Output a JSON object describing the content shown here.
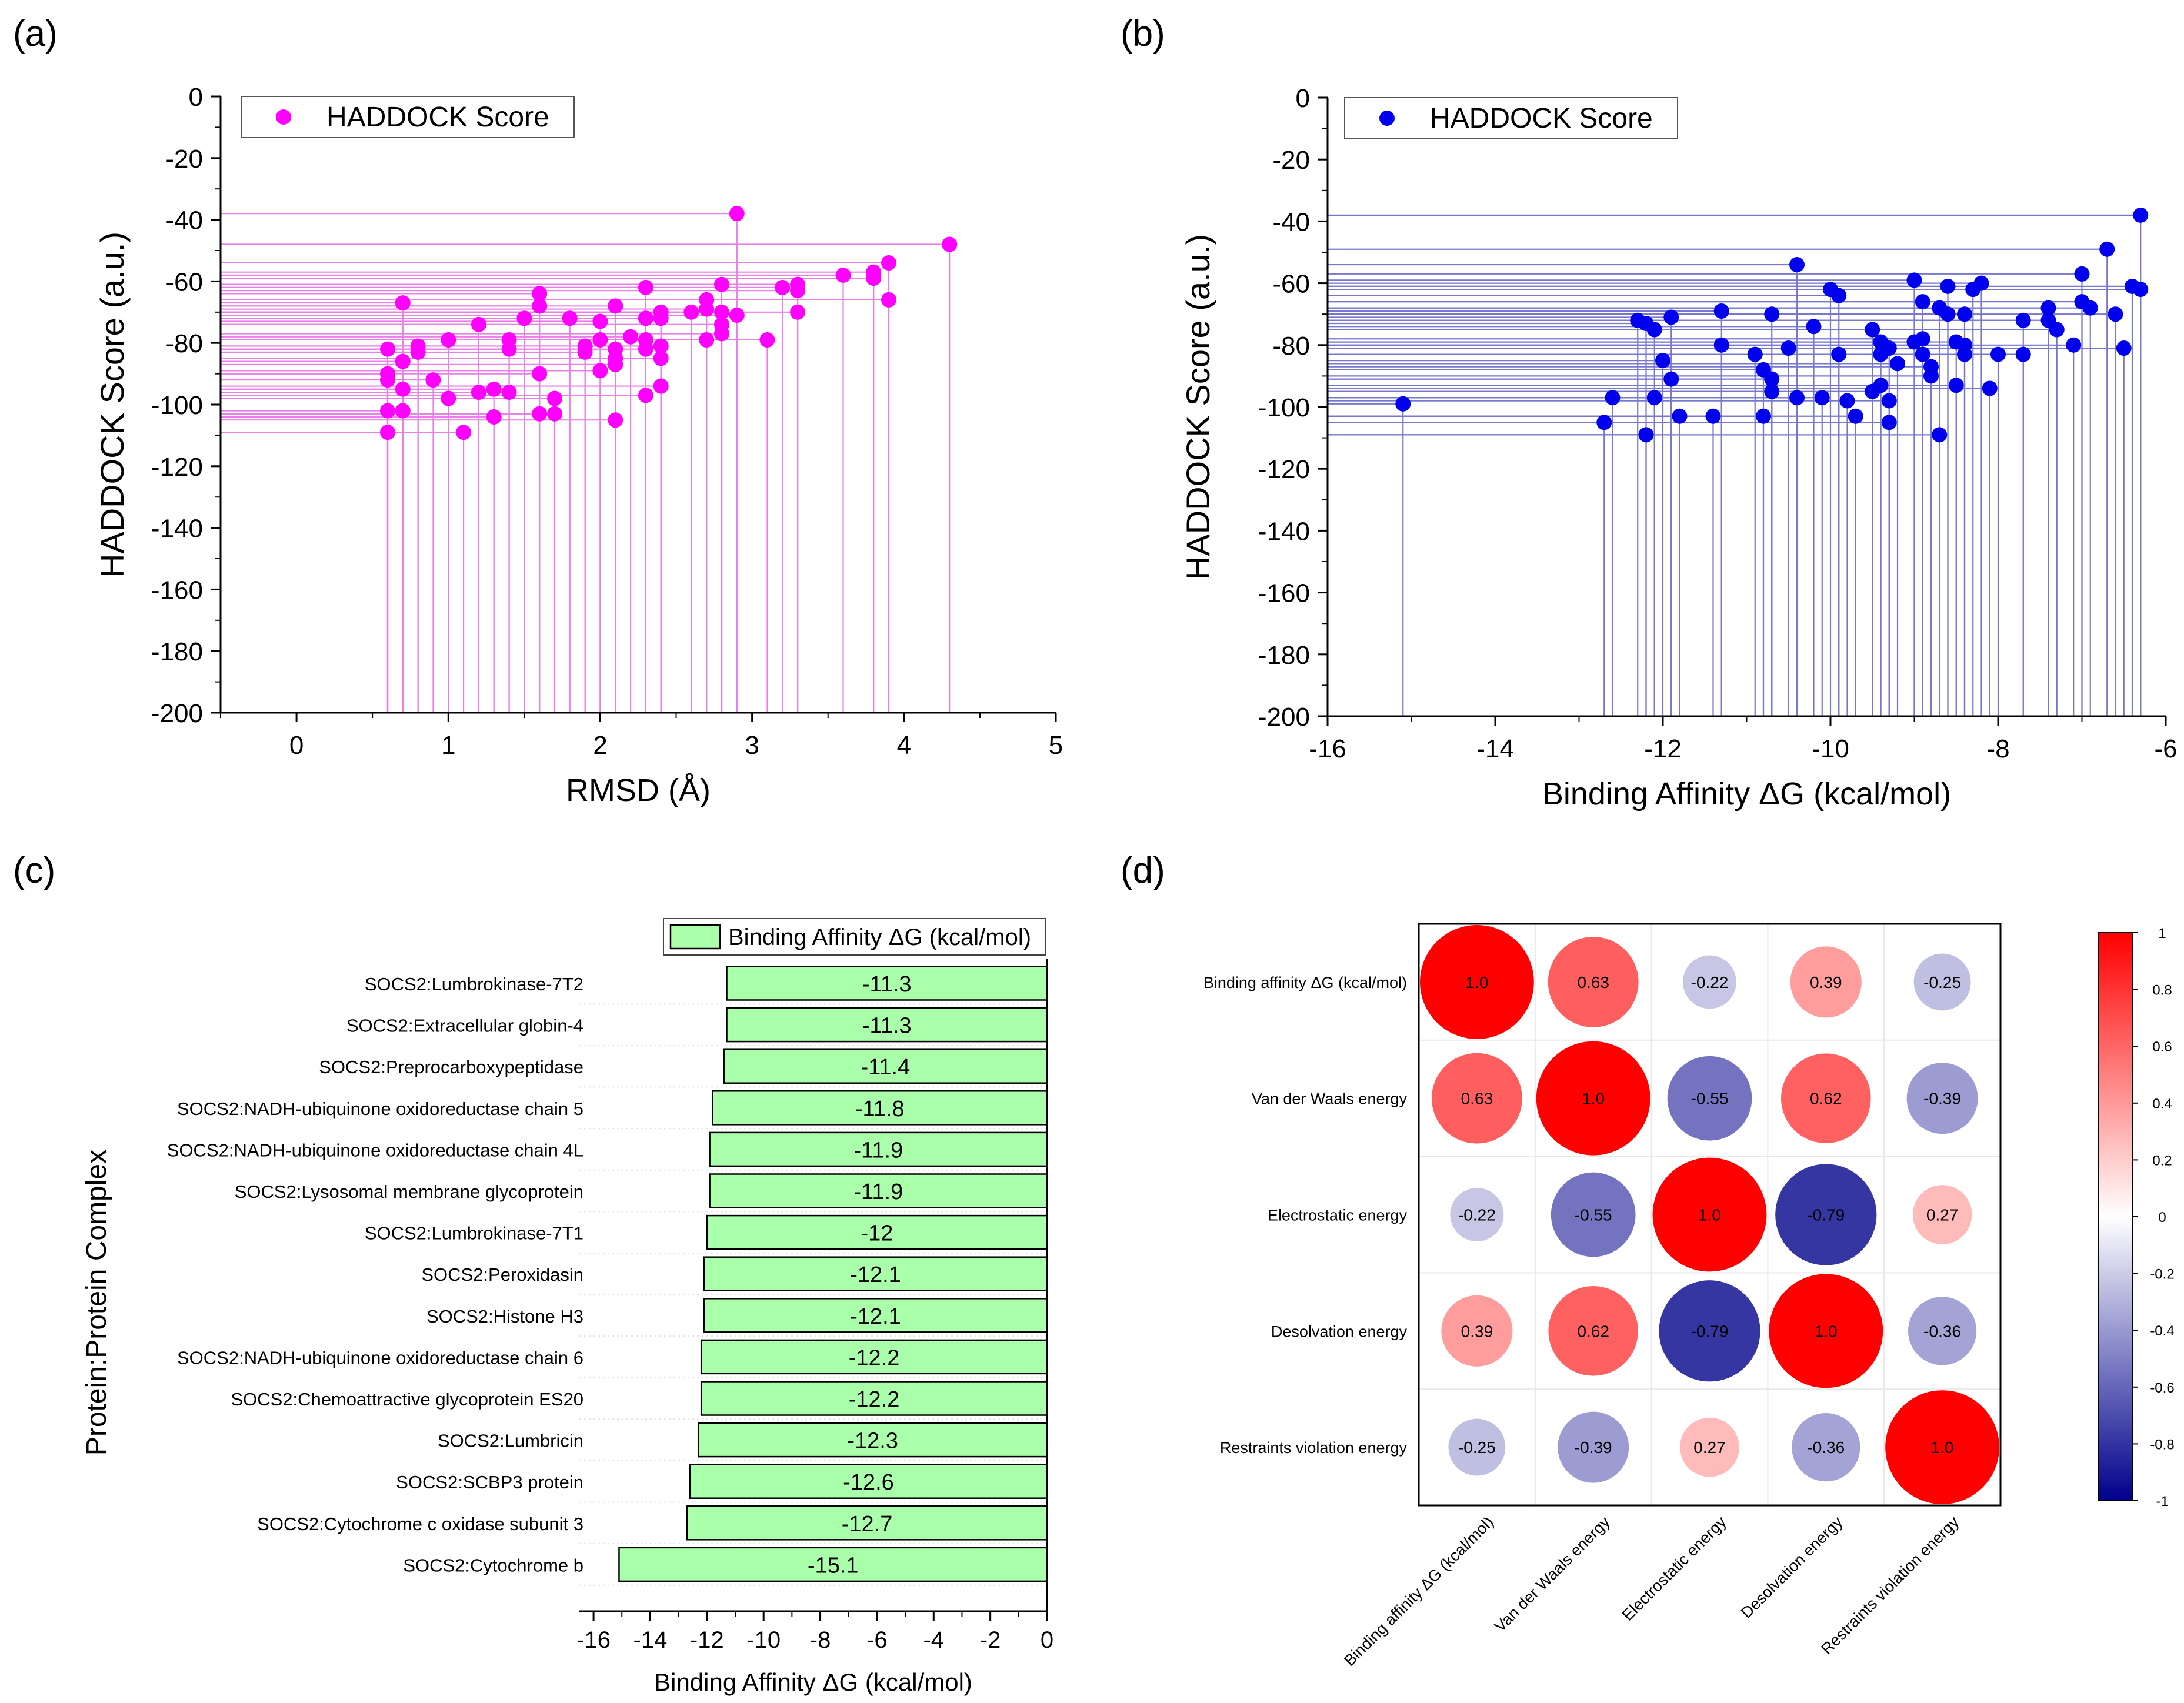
{
  "panels": {
    "a": {
      "label": "(a)"
    },
    "b": {
      "label": "(b)"
    },
    "c": {
      "label": "(c)"
    },
    "d": {
      "label": "(d)"
    }
  },
  "chart_data": [
    {
      "id": "a",
      "type": "scatter",
      "style": "drop-lines",
      "xlabel": "RMSD (Å)",
      "ylabel": "HADDOCK Score (a.u.)",
      "xlim": [
        -0.5,
        5
      ],
      "ylim": [
        -200,
        0
      ],
      "xticks": [
        0,
        1,
        2,
        3,
        4,
        5
      ],
      "yticks": [
        0,
        -20,
        -40,
        -60,
        -80,
        -100,
        -120,
        -140,
        -160,
        -180,
        -200
      ],
      "legend": {
        "label": "HADDOCK Score",
        "position": "top-left"
      },
      "color": "#ff00ff",
      "line_color": "#e880e8",
      "series": [
        {
          "name": "HADDOCK Score",
          "points": [
            [
              0.6,
              -82
            ],
            [
              0.6,
              -90
            ],
            [
              0.6,
              -92
            ],
            [
              0.6,
              -102
            ],
            [
              0.6,
              -109
            ],
            [
              0.7,
              -67
            ],
            [
              0.7,
              -86
            ],
            [
              0.7,
              -95
            ],
            [
              0.7,
              -102
            ],
            [
              0.8,
              -81
            ],
            [
              0.8,
              -83
            ],
            [
              0.9,
              -92
            ],
            [
              1.0,
              -79
            ],
            [
              1.0,
              -98
            ],
            [
              1.1,
              -109
            ],
            [
              1.2,
              -74
            ],
            [
              1.2,
              -96
            ],
            [
              1.3,
              -95
            ],
            [
              1.3,
              -104
            ],
            [
              1.4,
              -79
            ],
            [
              1.4,
              -82
            ],
            [
              1.4,
              -96
            ],
            [
              1.5,
              -72
            ],
            [
              1.6,
              -64
            ],
            [
              1.6,
              -68
            ],
            [
              1.6,
              -90
            ],
            [
              1.6,
              -103
            ],
            [
              1.7,
              -98
            ],
            [
              1.7,
              -103
            ],
            [
              1.8,
              -72
            ],
            [
              1.9,
              -81
            ],
            [
              1.9,
              -83
            ],
            [
              2.0,
              -73
            ],
            [
              2.0,
              -79
            ],
            [
              2.0,
              -89
            ],
            [
              2.1,
              -68
            ],
            [
              2.1,
              -82
            ],
            [
              2.1,
              -85
            ],
            [
              2.1,
              -87
            ],
            [
              2.1,
              -105
            ],
            [
              2.2,
              -78
            ],
            [
              2.3,
              -62
            ],
            [
              2.3,
              -72
            ],
            [
              2.3,
              -79
            ],
            [
              2.3,
              -82
            ],
            [
              2.3,
              -97
            ],
            [
              2.4,
              -70
            ],
            [
              2.4,
              -72
            ],
            [
              2.4,
              -81
            ],
            [
              2.4,
              -85
            ],
            [
              2.4,
              -94
            ],
            [
              2.6,
              -70
            ],
            [
              2.7,
              -66
            ],
            [
              2.7,
              -69
            ],
            [
              2.7,
              -79
            ],
            [
              2.8,
              -61
            ],
            [
              2.8,
              -70
            ],
            [
              2.8,
              -74
            ],
            [
              2.8,
              -77
            ],
            [
              2.9,
              -38
            ],
            [
              2.9,
              -71
            ],
            [
              3.1,
              -79
            ],
            [
              3.2,
              -62
            ],
            [
              3.3,
              -61
            ],
            [
              3.3,
              -63
            ],
            [
              3.3,
              -70
            ],
            [
              3.6,
              -58
            ],
            [
              3.8,
              -57
            ],
            [
              3.8,
              -59
            ],
            [
              3.9,
              -54
            ],
            [
              3.9,
              -66
            ],
            [
              4.3,
              -48
            ]
          ]
        }
      ]
    },
    {
      "id": "b",
      "type": "scatter",
      "style": "drop-lines",
      "xlabel": "Binding Affinity ΔG (kcal/mol)",
      "ylabel": "HADDOCK Score (a.u.)",
      "xlim": [
        -16,
        -6
      ],
      "ylim": [
        -200,
        0
      ],
      "xticks": [
        -16,
        -14,
        -12,
        -10,
        -8,
        -6
      ],
      "yticks": [
        0,
        -20,
        -40,
        -60,
        -80,
        -100,
        -120,
        -140,
        -160,
        -180,
        -200
      ],
      "legend": {
        "label": "HADDOCK Score",
        "position": "top-left"
      },
      "color": "#0000ee",
      "line_color": "#7777cc",
      "series": [
        {
          "name": "HADDOCK Score",
          "points": [
            [
              -15.1,
              -99
            ],
            [
              -12.7,
              -105
            ],
            [
              -12.6,
              -97
            ],
            [
              -12.3,
              -72
            ],
            [
              -12.2,
              -73
            ],
            [
              -12.2,
              -109
            ],
            [
              -12.1,
              -75
            ],
            [
              -12.1,
              -97
            ],
            [
              -12.0,
              -85
            ],
            [
              -11.9,
              -71
            ],
            [
              -11.9,
              -91
            ],
            [
              -11.8,
              -103
            ],
            [
              -11.4,
              -103
            ],
            [
              -11.3,
              -69
            ],
            [
              -11.3,
              -80
            ],
            [
              -10.9,
              -83
            ],
            [
              -10.8,
              -88
            ],
            [
              -10.8,
              -103
            ],
            [
              -10.7,
              -70
            ],
            [
              -10.7,
              -91
            ],
            [
              -10.7,
              -95
            ],
            [
              -10.5,
              -81
            ],
            [
              -10.4,
              -54
            ],
            [
              -10.4,
              -97
            ],
            [
              -10.2,
              -74
            ],
            [
              -10.1,
              -97
            ],
            [
              -10.0,
              -62
            ],
            [
              -9.9,
              -64
            ],
            [
              -9.9,
              -83
            ],
            [
              -9.8,
              -98
            ],
            [
              -9.7,
              -103
            ],
            [
              -9.5,
              -75
            ],
            [
              -9.5,
              -95
            ],
            [
              -9.4,
              -79
            ],
            [
              -9.4,
              -83
            ],
            [
              -9.4,
              -93
            ],
            [
              -9.3,
              -81
            ],
            [
              -9.3,
              -98
            ],
            [
              -9.3,
              -105
            ],
            [
              -9.2,
              -86
            ],
            [
              -9.0,
              -59
            ],
            [
              -9.0,
              -79
            ],
            [
              -8.9,
              -66
            ],
            [
              -8.9,
              -78
            ],
            [
              -8.9,
              -83
            ],
            [
              -8.8,
              -87
            ],
            [
              -8.8,
              -90
            ],
            [
              -8.7,
              -68
            ],
            [
              -8.7,
              -109
            ],
            [
              -8.6,
              -61
            ],
            [
              -8.6,
              -70
            ],
            [
              -8.5,
              -79
            ],
            [
              -8.5,
              -93
            ],
            [
              -8.4,
              -70
            ],
            [
              -8.4,
              -80
            ],
            [
              -8.4,
              -83
            ],
            [
              -8.3,
              -62
            ],
            [
              -8.2,
              -60
            ],
            [
              -8.1,
              -94
            ],
            [
              -8.0,
              -83
            ],
            [
              -7.7,
              -72
            ],
            [
              -7.7,
              -83
            ],
            [
              -7.4,
              -68
            ],
            [
              -7.4,
              -72
            ],
            [
              -7.3,
              -75
            ],
            [
              -7.1,
              -80
            ],
            [
              -7.0,
              -57
            ],
            [
              -7.0,
              -66
            ],
            [
              -6.9,
              -68
            ],
            [
              -6.7,
              -49
            ],
            [
              -6.6,
              -70
            ],
            [
              -6.5,
              -81
            ],
            [
              -6.4,
              -61
            ],
            [
              -6.3,
              -38
            ],
            [
              -6.3,
              -62
            ]
          ]
        }
      ]
    },
    {
      "id": "c",
      "type": "bar",
      "orientation": "horizontal",
      "xlabel": "Binding Affinity ΔG (kcal/mol)",
      "ylabel": "Protein:Protein Complex",
      "xlim": [
        -16.5,
        0
      ],
      "xticks": [
        -16,
        -14,
        -12,
        -10,
        -8,
        -6,
        -4,
        -2,
        0
      ],
      "legend": {
        "label": "Binding Affinity ΔG (kcal/mol)",
        "position": "top-right"
      },
      "bar_color": "#aaffaa",
      "categories": [
        "SOCS2:Lumbrokinase-7T2",
        "SOCS2:Extracellular globin-4",
        "SOCS2:Preprocarboxypeptidase",
        "SOCS2:NADH-ubiquinone oxidoreductase chain 5",
        "SOCS2:NADH-ubiquinone oxidoreductase chain 4L",
        "SOCS2:Lysosomal membrane glycoprotein",
        "SOCS2:Lumbrokinase-7T1",
        "SOCS2:Peroxidasin",
        "SOCS2:Histone H3",
        "SOCS2:NADH-ubiquinone oxidoreductase chain 6",
        "SOCS2:Chemoattractive glycoprotein ES20",
        "SOCS2:Lumbricin",
        "SOCS2:SCBP3 protein",
        "SOCS2:Cytochrome c oxidase subunit 3",
        "SOCS2:Cytochrome b"
      ],
      "values": [
        -11.3,
        -11.3,
        -11.4,
        -11.8,
        -11.9,
        -11.9,
        -12,
        -12.1,
        -12.1,
        -12.2,
        -12.2,
        -12.3,
        -12.6,
        -12.7,
        -15.1
      ],
      "value_labels": [
        "-11.3",
        "-11.3",
        "-11.4",
        "-11.8",
        "-11.9",
        "-11.9",
        "-12",
        "-12.1",
        "-12.1",
        "-12.2",
        "-12.2",
        "-12.3",
        "-12.6",
        "-12.7",
        "-15.1"
      ]
    },
    {
      "id": "d",
      "type": "heatmap",
      "style": "correlation-circles",
      "labels": [
        "Binding affinity ΔG (kcal/mol)",
        "Van der Waals energy",
        "Electrostatic energy",
        "Desolvation energy",
        "Restraints violation energy"
      ],
      "matrix": [
        [
          1.0,
          0.63,
          -0.22,
          0.39,
          -0.25
        ],
        [
          0.63,
          1.0,
          -0.55,
          0.62,
          -0.39
        ],
        [
          -0.22,
          -0.55,
          1.0,
          -0.79,
          0.27
        ],
        [
          0.39,
          0.62,
          -0.79,
          1.0,
          -0.36
        ],
        [
          -0.25,
          -0.39,
          0.27,
          -0.36,
          1.0
        ]
      ],
      "cell_labels": [
        [
          "1.0",
          "0.63",
          "-0.22",
          "0.39",
          "-0.25"
        ],
        [
          "0.63",
          "1.0",
          "-0.55",
          "0.62",
          "-0.39"
        ],
        [
          "-0.22",
          "-0.55",
          "1.0",
          "-0.79",
          "0.27"
        ],
        [
          "0.39",
          "0.62",
          "-0.79",
          "1.0",
          "-0.36"
        ],
        [
          "-0.25",
          "-0.39",
          "0.27",
          "-0.36",
          "1.0"
        ]
      ],
      "colorbar": {
        "range": [
          -1,
          1
        ],
        "ticks": [
          "1",
          "0.8",
          "0.6",
          "0.4",
          "0.2",
          "0",
          "-0.2",
          "-0.4",
          "-0.6",
          "-0.8",
          "-1"
        ],
        "colors": {
          "negative": "#00008b",
          "zero": "#ffffff",
          "positive": "#ff0000"
        }
      }
    }
  ]
}
